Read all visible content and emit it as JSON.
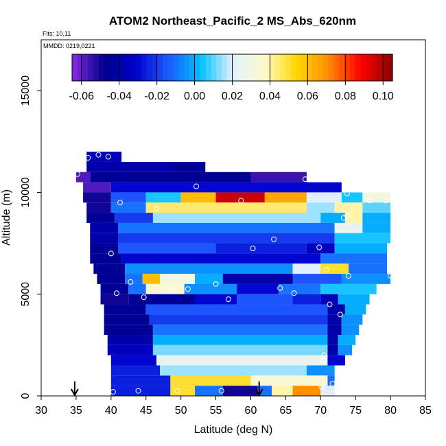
{
  "chart_data": {
    "type": "heatmap",
    "title": "ATOM2 Northeast_Pacific_2 MS_Abs_620nm",
    "annotations": {
      "flights": "Flts: 10,11",
      "dates": "MMDD: 0219,0221"
    },
    "xlabel": "Latitude (deg N)",
    "ylabel": "Altitude (m)",
    "xlim": [
      30,
      85
    ],
    "ylim": [
      0,
      17500
    ],
    "x_ticks": [
      30,
      35,
      40,
      45,
      50,
      55,
      60,
      65,
      70,
      75,
      80,
      85
    ],
    "y_ticks": [
      0,
      5000,
      10000,
      15000
    ],
    "colorbar": {
      "range": [
        -0.065,
        0.105
      ],
      "ticks": [
        -0.06,
        -0.04,
        -0.02,
        0.0,
        0.02,
        0.04,
        0.06,
        0.08,
        0.1
      ],
      "tick_labels": [
        "-0.06",
        "-0.04",
        "-0.02",
        "0.00",
        "0.02",
        "0.04",
        "0.06",
        "0.08",
        "0.10"
      ],
      "colors": [
        "#8a2be2",
        "#00008b",
        "#0000cd",
        "#1e5aff",
        "#00bfff",
        "#e0f0ff",
        "#fffacd",
        "#ffd700",
        "#ff8c00",
        "#ff0000",
        "#8b0000"
      ],
      "placement": "top, inside plot"
    },
    "profile_arrows_lat": [
      34.8,
      61.2
    ],
    "cells": [
      {
        "lat": [
          36.5,
          41.5
        ],
        "alt": [
          11500,
          12000
        ],
        "v": -0.035
      },
      {
        "lat": [
          36.5,
          49.0
        ],
        "alt": [
          11000,
          11500
        ],
        "v": -0.04
      },
      {
        "lat": [
          49.0,
          53.5
        ],
        "alt": [
          11000,
          11500
        ],
        "v": -0.045
      },
      {
        "lat": [
          35.0,
          37.0
        ],
        "alt": [
          10500,
          11000
        ],
        "v": -0.058
      },
      {
        "lat": [
          37.0,
          60.0
        ],
        "alt": [
          10500,
          11000
        ],
        "v": -0.045
      },
      {
        "lat": [
          60.0,
          68.0
        ],
        "alt": [
          10500,
          11000
        ],
        "v": -0.055
      },
      {
        "lat": [
          36.0,
          40.0
        ],
        "alt": [
          10000,
          10500
        ],
        "v": -0.058
      },
      {
        "lat": [
          40.0,
          73.0
        ],
        "alt": [
          10000,
          10500
        ],
        "v": -0.03
      },
      {
        "lat": [
          36.0,
          40.0
        ],
        "alt": [
          9500,
          10000
        ],
        "v": -0.05
      },
      {
        "lat": [
          40.0,
          45.0
        ],
        "alt": [
          9500,
          10000
        ],
        "v": -0.015
      },
      {
        "lat": [
          45.0,
          50.0
        ],
        "alt": [
          9500,
          10000
        ],
        "v": 0.005
      },
      {
        "lat": [
          50.0,
          55.0
        ],
        "alt": [
          9500,
          10000
        ],
        "v": 0.06
      },
      {
        "lat": [
          55.0,
          62.0
        ],
        "alt": [
          9500,
          10000
        ],
        "v": 0.095
      },
      {
        "lat": [
          62.0,
          68.0
        ],
        "alt": [
          9500,
          10000
        ],
        "v": 0.065
      },
      {
        "lat": [
          68.0,
          73.0
        ],
        "alt": [
          9500,
          10000
        ],
        "v": 0.02
      },
      {
        "lat": [
          73.0,
          76.0
        ],
        "alt": [
          9500,
          10000
        ],
        "v": 0.005
      },
      {
        "lat": [
          76.0,
          80.0
        ],
        "alt": [
          9500,
          10000
        ],
        "v": 0.03
      },
      {
        "lat": [
          36.5,
          40.0
        ],
        "alt": [
          9000,
          9500
        ],
        "v": -0.05
      },
      {
        "lat": [
          40.0,
          45.0
        ],
        "alt": [
          9000,
          9500
        ],
        "v": -0.01
      },
      {
        "lat": [
          45.0,
          68.0
        ],
        "alt": [
          9000,
          9500
        ],
        "v": 0.045
      },
      {
        "lat": [
          68.0,
          72.0
        ],
        "alt": [
          9000,
          9500
        ],
        "v": 0.015
      },
      {
        "lat": [
          72.0,
          76.0
        ],
        "alt": [
          9000,
          9500
        ],
        "v": 0.04
      },
      {
        "lat": [
          76.0,
          80.0
        ],
        "alt": [
          9000,
          9500
        ],
        "v": 0.01
      },
      {
        "lat": [
          36.5,
          40.5
        ],
        "alt": [
          8500,
          9000
        ],
        "v": -0.045
      },
      {
        "lat": [
          40.5,
          46.0
        ],
        "alt": [
          8500,
          9000
        ],
        "v": -0.02
      },
      {
        "lat": [
          46.0,
          70.0
        ],
        "alt": [
          8500,
          9000
        ],
        "v": 0.015
      },
      {
        "lat": [
          70.0,
          73.5
        ],
        "alt": [
          8500,
          9000
        ],
        "v": 0.0
      },
      {
        "lat": [
          73.5,
          76.0
        ],
        "alt": [
          8500,
          9000
        ],
        "v": 0.04
      },
      {
        "lat": [
          76.0,
          80.0
        ],
        "alt": [
          8500,
          9000
        ],
        "v": 0.0
      },
      {
        "lat": [
          37.0,
          41.0
        ],
        "alt": [
          8000,
          8500
        ],
        "v": -0.04
      },
      {
        "lat": [
          41.0,
          72.0
        ],
        "alt": [
          8000,
          8500
        ],
        "v": -0.01
      },
      {
        "lat": [
          72.0,
          76.0
        ],
        "alt": [
          8000,
          8500
        ],
        "v": 0.025
      },
      {
        "lat": [
          76.0,
          80.0
        ],
        "alt": [
          8000,
          8500
        ],
        "v": 0.0
      },
      {
        "lat": [
          37.0,
          41.0
        ],
        "alt": [
          7500,
          8000
        ],
        "v": -0.04
      },
      {
        "lat": [
          41.0,
          72.0
        ],
        "alt": [
          7500,
          8000
        ],
        "v": -0.02
      },
      {
        "lat": [
          72.0,
          80.0
        ],
        "alt": [
          7500,
          8000
        ],
        "v": 0.005
      },
      {
        "lat": [
          37.0,
          41.0
        ],
        "alt": [
          7000,
          7500
        ],
        "v": -0.045
      },
      {
        "lat": [
          41.0,
          55.0
        ],
        "alt": [
          7000,
          7500
        ],
        "v": -0.015
      },
      {
        "lat": [
          55.0,
          68.0
        ],
        "alt": [
          7000,
          7500
        ],
        "v": -0.025
      },
      {
        "lat": [
          68.0,
          72.0
        ],
        "alt": [
          7000,
          7500
        ],
        "v": -0.035
      },
      {
        "lat": [
          72.0,
          79.5
        ],
        "alt": [
          7000,
          7500
        ],
        "v": 0.0
      },
      {
        "lat": [
          37.0,
          41.5
        ],
        "alt": [
          6500,
          7000
        ],
        "v": -0.045
      },
      {
        "lat": [
          41.5,
          70.0
        ],
        "alt": [
          6500,
          7000
        ],
        "v": -0.03
      },
      {
        "lat": [
          70.0,
          79.5
        ],
        "alt": [
          6500,
          7000
        ],
        "v": -0.01
      },
      {
        "lat": [
          37.5,
          42.0
        ],
        "alt": [
          6000,
          6500
        ],
        "v": -0.045
      },
      {
        "lat": [
          42.0,
          66.0
        ],
        "alt": [
          6000,
          6500
        ],
        "v": -0.005
      },
      {
        "lat": [
          66.0,
          70.0
        ],
        "alt": [
          6000,
          6500
        ],
        "v": 0.02
      },
      {
        "lat": [
          70.0,
          74.0
        ],
        "alt": [
          6000,
          6500
        ],
        "v": 0.05
      },
      {
        "lat": [
          74.0,
          79.5
        ],
        "alt": [
          6000,
          6500
        ],
        "v": -0.01
      },
      {
        "lat": [
          38.0,
          42.0
        ],
        "alt": [
          5500,
          6000
        ],
        "v": -0.045
      },
      {
        "lat": [
          42.0,
          44.5
        ],
        "alt": [
          5500,
          6000
        ],
        "v": -0.01
      },
      {
        "lat": [
          44.5,
          47.0
        ],
        "alt": [
          5500,
          6000
        ],
        "v": 0.06
      },
      {
        "lat": [
          47.0,
          52.0
        ],
        "alt": [
          5500,
          6000
        ],
        "v": 0.03
      },
      {
        "lat": [
          52.0,
          56.0
        ],
        "alt": [
          5500,
          6000
        ],
        "v": 0.0
      },
      {
        "lat": [
          56.0,
          66.0
        ],
        "alt": [
          5500,
          6000
        ],
        "v": -0.04
      },
      {
        "lat": [
          66.0,
          73.0
        ],
        "alt": [
          5500,
          6000
        ],
        "v": -0.015
      },
      {
        "lat": [
          73.0,
          80.0
        ],
        "alt": [
          5500,
          6000
        ],
        "v": -0.005
      },
      {
        "lat": [
          38.5,
          42.5
        ],
        "alt": [
          5000,
          5500
        ],
        "v": -0.045
      },
      {
        "lat": [
          42.5,
          45.0
        ],
        "alt": [
          5000,
          5500
        ],
        "v": -0.01
      },
      {
        "lat": [
          45.0,
          50.5
        ],
        "alt": [
          5000,
          5500
        ],
        "v": 0.035
      },
      {
        "lat": [
          50.5,
          58.0
        ],
        "alt": [
          5000,
          5500
        ],
        "v": -0.005
      },
      {
        "lat": [
          58.0,
          64.0
        ],
        "alt": [
          5000,
          5500
        ],
        "v": -0.03
      },
      {
        "lat": [
          64.0,
          70.0
        ],
        "alt": [
          5000,
          5500
        ],
        "v": -0.01
      },
      {
        "lat": [
          70.0,
          78.0
        ],
        "alt": [
          5000,
          5500
        ],
        "v": 0.005
      },
      {
        "lat": [
          38.5,
          42.5
        ],
        "alt": [
          4500,
          5000
        ],
        "v": -0.05
      },
      {
        "lat": [
          42.5,
          52.0
        ],
        "alt": [
          4500,
          5000
        ],
        "v": -0.045
      },
      {
        "lat": [
          52.0,
          58.0
        ],
        "alt": [
          4500,
          5000
        ],
        "v": -0.03
      },
      {
        "lat": [
          58.0,
          66.0
        ],
        "alt": [
          4500,
          5000
        ],
        "v": -0.015
      },
      {
        "lat": [
          66.0,
          70.0
        ],
        "alt": [
          4500,
          5000
        ],
        "v": -0.025
      },
      {
        "lat": [
          70.0,
          72.5
        ],
        "alt": [
          4500,
          5000
        ],
        "v": -0.035
      },
      {
        "lat": [
          72.5,
          77.0
        ],
        "alt": [
          4500,
          5000
        ],
        "v": 0.0
      },
      {
        "lat": [
          39.0,
          45.0
        ],
        "alt": [
          4000,
          4500
        ],
        "v": -0.045
      },
      {
        "lat": [
          45.0,
          71.0
        ],
        "alt": [
          4000,
          4500
        ],
        "v": -0.015
      },
      {
        "lat": [
          71.0,
          73.5
        ],
        "alt": [
          4000,
          4500
        ],
        "v": -0.04
      },
      {
        "lat": [
          73.5,
          76.5
        ],
        "alt": [
          4000,
          4500
        ],
        "v": 0.0
      },
      {
        "lat": [
          39.0,
          45.5
        ],
        "alt": [
          3500,
          4000
        ],
        "v": -0.045
      },
      {
        "lat": [
          45.5,
          71.0
        ],
        "alt": [
          3500,
          4000
        ],
        "v": -0.02
      },
      {
        "lat": [
          71.0,
          73.0
        ],
        "alt": [
          3500,
          4000
        ],
        "v": -0.04
      },
      {
        "lat": [
          73.0,
          76.0
        ],
        "alt": [
          3500,
          4000
        ],
        "v": -0.005
      },
      {
        "lat": [
          39.0,
          46.0
        ],
        "alt": [
          3000,
          3500
        ],
        "v": -0.045
      },
      {
        "lat": [
          46.0,
          71.0
        ],
        "alt": [
          3000,
          3500
        ],
        "v": -0.01
      },
      {
        "lat": [
          71.0,
          73.0
        ],
        "alt": [
          3000,
          3500
        ],
        "v": -0.04
      },
      {
        "lat": [
          73.0,
          75.5
        ],
        "alt": [
          3000,
          3500
        ],
        "v": -0.005
      },
      {
        "lat": [
          39.5,
          46.0
        ],
        "alt": [
          2500,
          3000
        ],
        "v": -0.04
      },
      {
        "lat": [
          46.0,
          71.0
        ],
        "alt": [
          2500,
          3000
        ],
        "v": 0.0
      },
      {
        "lat": [
          71.0,
          72.5
        ],
        "alt": [
          2500,
          3000
        ],
        "v": -0.04
      },
      {
        "lat": [
          72.5,
          75.0
        ],
        "alt": [
          2500,
          3000
        ],
        "v": 0.0
      },
      {
        "lat": [
          39.5,
          46.0
        ],
        "alt": [
          2000,
          2500
        ],
        "v": -0.035
      },
      {
        "lat": [
          46.0,
          71.0
        ],
        "alt": [
          2000,
          2500
        ],
        "v": 0.012
      },
      {
        "lat": [
          71.0,
          72.5
        ],
        "alt": [
          2000,
          2500
        ],
        "v": -0.04
      },
      {
        "lat": [
          72.5,
          74.5
        ],
        "alt": [
          2000,
          2500
        ],
        "v": -0.005
      },
      {
        "lat": [
          40.0,
          46.5
        ],
        "alt": [
          1500,
          2000
        ],
        "v": -0.03
      },
      {
        "lat": [
          46.5,
          71.0
        ],
        "alt": [
          1500,
          2000
        ],
        "v": 0.025
      },
      {
        "lat": [
          71.0,
          73.5
        ],
        "alt": [
          1500,
          2000
        ],
        "v": -0.03
      },
      {
        "lat": [
          40.0,
          47.0
        ],
        "alt": [
          1000,
          1500
        ],
        "v": -0.025
      },
      {
        "lat": [
          47.0,
          68.0
        ],
        "alt": [
          1000,
          1500
        ],
        "v": 0.015
      },
      {
        "lat": [
          68.0,
          72.0
        ],
        "alt": [
          1000,
          1500
        ],
        "v": -0.005
      },
      {
        "lat": [
          40.0,
          48.5
        ],
        "alt": [
          500,
          1000
        ],
        "v": -0.025
      },
      {
        "lat": [
          48.5,
          60.0
        ],
        "alt": [
          500,
          1000
        ],
        "v": 0.05
      },
      {
        "lat": [
          60.0,
          71.0
        ],
        "alt": [
          500,
          1000
        ],
        "v": 0.035
      },
      {
        "lat": [
          71.0,
          72.0
        ],
        "alt": [
          500,
          1000
        ],
        "v": -0.01
      },
      {
        "lat": [
          40.0,
          48.5
        ],
        "alt": [
          0,
          500
        ],
        "v": -0.025
      },
      {
        "lat": [
          48.5,
          52.0
        ],
        "alt": [
          0,
          500
        ],
        "v": 0.05
      },
      {
        "lat": [
          52.0,
          56.0
        ],
        "alt": [
          0,
          500
        ],
        "v": -0.01
      },
      {
        "lat": [
          56.0,
          61.0
        ],
        "alt": [
          0,
          500
        ],
        "v": -0.05
      },
      {
        "lat": [
          61.0,
          63.0
        ],
        "alt": [
          0,
          500
        ],
        "v": -0.01
      },
      {
        "lat": [
          63.0,
          66.0
        ],
        "alt": [
          0,
          500
        ],
        "v": 0.04
      },
      {
        "lat": [
          66.0,
          70.0
        ],
        "alt": [
          0,
          500
        ],
        "v": 0.07
      },
      {
        "lat": [
          70.0,
          72.0
        ],
        "alt": [
          0,
          500
        ],
        "v": 0.02
      }
    ],
    "sample_points": [
      [
        36.7,
        11700
      ],
      [
        38.2,
        11850
      ],
      [
        39.6,
        11750
      ],
      [
        35.2,
        10900
      ],
      [
        52.2,
        10300
      ],
      [
        67.8,
        10650
      ],
      [
        41.3,
        9500
      ],
      [
        46.5,
        9200
      ],
      [
        58.6,
        9600
      ],
      [
        73.8,
        9950
      ],
      [
        77.0,
        9600
      ],
      [
        79.3,
        9600
      ],
      [
        73.3,
        8750
      ],
      [
        73.8,
        8850
      ],
      [
        63.3,
        7700
      ],
      [
        60.3,
        7250
      ],
      [
        69.8,
        7300
      ],
      [
        40.0,
        7000
      ],
      [
        70.8,
        6200
      ],
      [
        74.0,
        5900
      ],
      [
        80.0,
        5900
      ],
      [
        42.8,
        5600
      ],
      [
        55.0,
        5500
      ],
      [
        48.7,
        5150
      ],
      [
        51.0,
        5250
      ],
      [
        64.2,
        5300
      ],
      [
        66.2,
        5050
      ],
      [
        40.8,
        5050
      ],
      [
        44.7,
        4850
      ],
      [
        56.8,
        4750
      ],
      [
        71.3,
        4500
      ],
      [
        72.8,
        4000
      ],
      [
        70.5,
        2000
      ],
      [
        70.2,
        1750
      ],
      [
        40.3,
        200
      ],
      [
        43.9,
        250
      ],
      [
        49.5,
        250
      ],
      [
        55.8,
        250
      ],
      [
        70.1,
        450
      ],
      [
        71.7,
        600
      ]
    ]
  }
}
